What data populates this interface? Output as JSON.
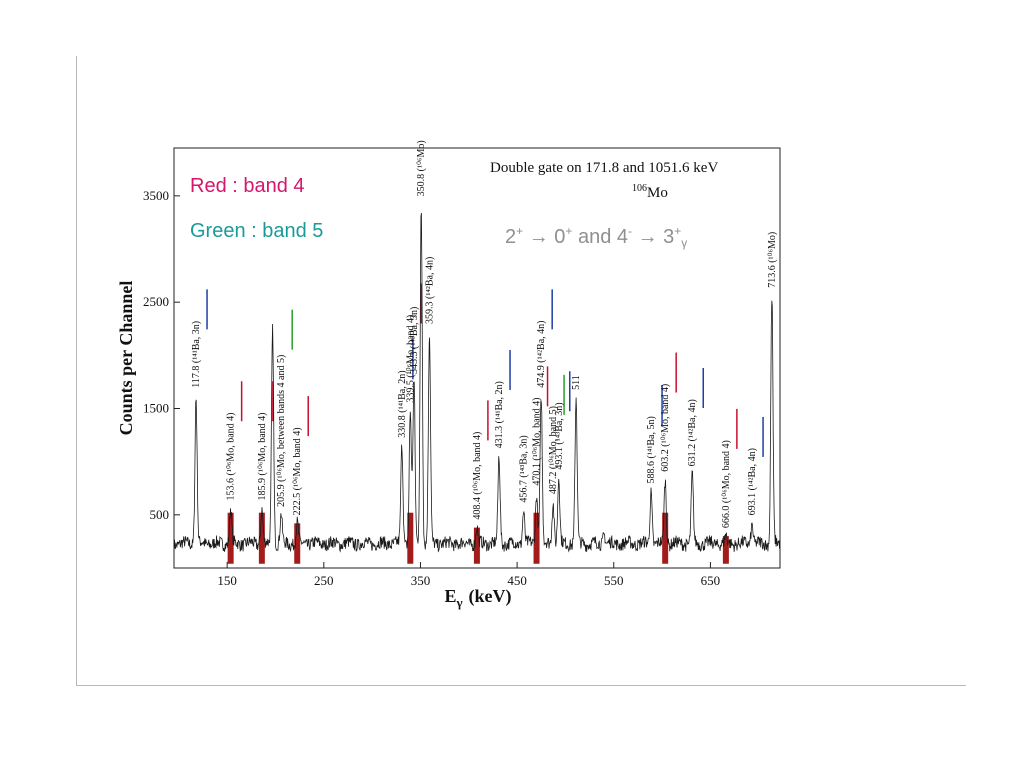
{
  "chart_data": {
    "type": "line",
    "title": "Double gate on 171.8 and 1051.6 keV",
    "nucleus": {
      "mass": "106",
      "element": "Mo"
    },
    "xlabel": {
      "main": "E",
      "sub": "γ",
      "unit": "(keV)"
    },
    "ylabel": "Counts per Channel",
    "xlim": [
      95,
      722
    ],
    "ylim": [
      0,
      3950
    ],
    "xticks": [
      150,
      250,
      350,
      450,
      550,
      650
    ],
    "yticks": [
      500,
      1500,
      2500,
      3500
    ],
    "legend": [
      {
        "text": "Red : band 4",
        "color": "#d6156c"
      },
      {
        "text": "Green : band 5",
        "color": "#1a9a9a"
      }
    ],
    "annotation": {
      "parts": [
        "2",
        "+",
        " → ",
        "0",
        "+",
        " and 4",
        "-",
        " → ",
        "3",
        "+",
        "γ"
      ],
      "color": "#8f8f8f"
    },
    "background": {
      "base": 230,
      "noise": 60
    },
    "series": [
      {
        "peaks": [
          {
            "x": 117.8,
            "y": 1620,
            "label": "117.8 (¹⁴¹Ba, 3n)",
            "marker": "blue"
          },
          {
            "x": 153.6,
            "y": 560,
            "label": "153.6 (¹⁰⁶Mo, band 4)",
            "marker": "red",
            "band": "red"
          },
          {
            "x": 185.9,
            "y": 560,
            "label": "185.9 (¹⁰⁶Mo, band 4)",
            "marker": "red",
            "band": "red"
          },
          {
            "x": 197.0,
            "y": 2250,
            "label": ""
          },
          {
            "x": 205.9,
            "y": 500,
            "label": "205.9 (¹⁰⁶Mo, between bands 4 and 5)",
            "marker": "green"
          },
          {
            "x": 222.5,
            "y": 420,
            "label": "222.5 (¹⁰⁶Mo, band 4)",
            "marker": "red",
            "band": "red"
          },
          {
            "x": 330.8,
            "y": 1150,
            "label": "330.8 (¹⁴¹Ba, 2n)",
            "marker": "blue"
          },
          {
            "x": 339.5,
            "y": 1480,
            "label": "339.5 (¹⁰⁶Mo, band 4)",
            "marker": "red",
            "band": "red"
          },
          {
            "x": 343.3,
            "y": 1750,
            "label": "343.3 (¹⁴³Ba, 3n)"
          },
          {
            "x": 350.8,
            "y": 3420,
            "label": "350.8 (¹⁰⁶Mo)"
          },
          {
            "x": 359.3,
            "y": 2220,
            "label": "359.3 (¹⁴²Ba, 4n)"
          },
          {
            "x": 408.4,
            "y": 380,
            "label": "408.4 (¹⁰⁶Mo, band 4)",
            "marker": "red",
            "band": "red"
          },
          {
            "x": 431.3,
            "y": 1050,
            "label": "431.3 (¹⁴¹Ba, 2n)",
            "marker": "blue"
          },
          {
            "x": 456.7,
            "y": 540,
            "label": "456.7 (¹⁴³Ba, 3n)"
          },
          {
            "x": 470.1,
            "y": 700,
            "label": "470.1 (¹⁰⁶Mo, band 4)",
            "marker": "red",
            "band": "red"
          },
          {
            "x": 474.9,
            "y": 1620,
            "label": "474.9 (¹⁴²Ba, 4n)",
            "marker": "blue"
          },
          {
            "x": 487.2,
            "y": 620,
            "label": "487.2 (¹⁰⁶Mo, band 5)",
            "marker": "green"
          },
          {
            "x": 493.1,
            "y": 850,
            "label": "493.1 (¹⁴³Ba, 3n)",
            "marker": "blue"
          },
          {
            "x": 511,
            "y": 1600,
            "label": "511"
          },
          {
            "x": 540,
            "y": 330,
            "label": ""
          },
          {
            "x": 588.6,
            "y": 720,
            "label": "588.6 (¹⁴¹Ba, 5n)",
            "marker": "blue"
          },
          {
            "x": 603.2,
            "y": 830,
            "label": "603.2 (¹⁰⁶Mo, band 4)",
            "marker": "red",
            "band": "red"
          },
          {
            "x": 631.2,
            "y": 880,
            "label": "631.2 (¹⁴²Ba, 4n)",
            "marker": "blue"
          },
          {
            "x": 666.0,
            "y": 300,
            "label": "666.0 (¹⁰⁶Mo, band 4)",
            "marker": "red",
            "band": "red"
          },
          {
            "x": 693.1,
            "y": 420,
            "label": "693.1 (¹⁴²Ba, 4n)",
            "marker": "blue"
          },
          {
            "x": 713.6,
            "y": 2560,
            "label": "713.6 (¹⁰⁶Mo)"
          }
        ]
      }
    ]
  },
  "colors": {
    "trace": "#1a1a1a",
    "band_red": "#a31b1b",
    "marker_red": "#c8102e",
    "marker_blue": "#1f3fa6",
    "marker_green": "#2aa02a"
  }
}
